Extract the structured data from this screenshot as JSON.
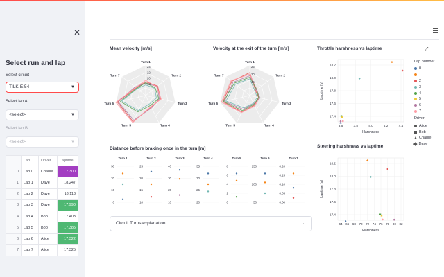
{
  "sidebar": {
    "title": "Select run and lap",
    "circuit_label": "Select circuit",
    "circuit_value": "TILK-E:54",
    "lap_a_label": "Select lap A",
    "lap_a_value": "<select>",
    "lap_b_label": "Select lap B",
    "lap_b_value": "<select>"
  },
  "table": {
    "headers": [
      "",
      "Lap",
      "Driver",
      "Laptime"
    ],
    "rows": [
      {
        "idx": "0",
        "lap": "Lap 0",
        "driver": "Charlie",
        "laptime": "17.300"
      },
      {
        "idx": "1",
        "lap": "Lap 1",
        "driver": "Dave",
        "laptime": "18.247"
      },
      {
        "idx": "2",
        "lap": "Lap 2",
        "driver": "Dave",
        "laptime": "18.113"
      },
      {
        "idx": "3",
        "lap": "Lap 3",
        "driver": "Dave",
        "laptime": "17.990"
      },
      {
        "idx": "4",
        "lap": "Lap 4",
        "driver": "Bob",
        "laptime": "17.403"
      },
      {
        "idx": "5",
        "lap": "Lap 5",
        "driver": "Bob",
        "laptime": "17.385"
      },
      {
        "idx": "6",
        "lap": "Lap 6",
        "driver": "Alice",
        "laptime": "17.322"
      },
      {
        "idx": "7",
        "lap": "Lap 7",
        "driver": "Alice",
        "laptime": "17.325"
      }
    ],
    "highlight_colors": {
      "purple": "#a33ec2",
      "green": "#4fb873"
    }
  },
  "charts": {
    "mean_velocity_title": "Mean velocity [m/s]",
    "exit_velocity_title": "Velocity at the exit of the turn [m/s]",
    "throttle_title": "Throttle harshness vs laptime",
    "steering_title": "Steering harshness vs laptime",
    "braking_title": "Distance before braking once in the turn [m]",
    "radar_axes": [
      "Turn 1",
      "Turn 2",
      "Turn 3",
      "Turn 4",
      "Turn 5",
      "Turn 6",
      "Turn 7"
    ],
    "mean_velocity_ticks": [
      "24",
      "22",
      "20",
      "18"
    ],
    "exit_velocity_ticks": [
      "25",
      "20",
      "15"
    ],
    "scatter_ylabel": "Laptime [s]",
    "scatter_xlabel": "Harshness",
    "throttle_xticks": [
      "3.6",
      "3.8",
      "4.0",
      "4.2",
      "4.4"
    ],
    "throttle_yticks": [
      "18.2",
      "18.0",
      "17.8",
      "17.6",
      "17.4"
    ],
    "steering_xticks": [
      "64",
      "66",
      "68",
      "70",
      "72",
      "74",
      "76",
      "78",
      "80",
      "82"
    ],
    "steering_yticks": [
      "18.2",
      "18.0",
      "17.8",
      "17.6",
      "17.4"
    ]
  },
  "legend": {
    "lap_title": "Lap number",
    "laps": [
      {
        "label": "0",
        "color": "#4c78a8"
      },
      {
        "label": "1",
        "color": "#f58518"
      },
      {
        "label": "2",
        "color": "#e45756"
      },
      {
        "label": "3",
        "color": "#72b7b2"
      },
      {
        "label": "4",
        "color": "#54a24b"
      },
      {
        "label": "5",
        "color": "#eeca3b"
      },
      {
        "label": "6",
        "color": "#b279a2"
      },
      {
        "label": "7",
        "color": "#ff9da6"
      }
    ],
    "driver_title": "Driver",
    "drivers": [
      "Alice",
      "Bob",
      "Charlie",
      "Dave"
    ]
  },
  "expander": {
    "label": "Circuit Turns explanation"
  },
  "braking": {
    "panels": [
      {
        "title": "Turn 1",
        "ticks": [
          "30",
          "20",
          "10",
          "0"
        ]
      },
      {
        "title": "Turn 2",
        "ticks": [
          "25",
          "20",
          "15",
          "10"
        ]
      },
      {
        "title": "Turn 3",
        "ticks": [
          "40",
          "30",
          "20",
          "10"
        ]
      },
      {
        "title": "Turn 4",
        "ticks": [
          "35",
          "30",
          "25",
          "20"
        ]
      },
      {
        "title": "Turn 5",
        "ticks": [
          "8",
          "6",
          "4",
          "2",
          "0"
        ]
      },
      {
        "title": "Turn 6",
        "ticks": [
          "150",
          "100",
          "50"
        ]
      },
      {
        "title": "Turn 7",
        "ticks": [
          "0.20",
          "0.15",
          "0.10",
          "0.05",
          "0.00"
        ]
      }
    ]
  }
}
